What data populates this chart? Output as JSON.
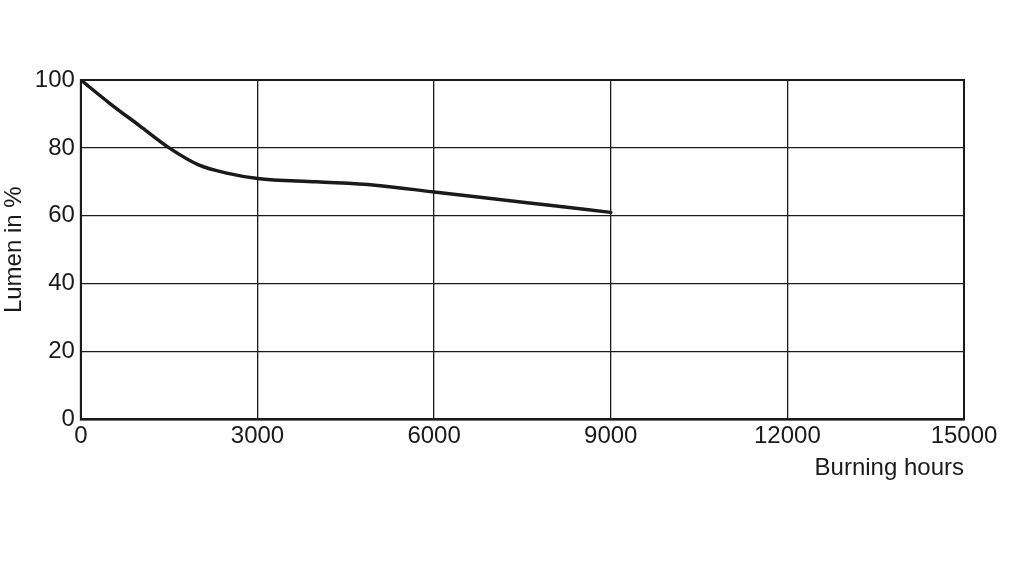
{
  "chart_data": {
    "type": "line",
    "xlabel": "Burning hours",
    "ylabel": "Lumen in %",
    "x": [
      0,
      500,
      1000,
      1500,
      2000,
      2500,
      3000,
      4000,
      5000,
      6000,
      7000,
      8000,
      9000
    ],
    "values": [
      100,
      93,
      86.5,
      80,
      75,
      72.5,
      71,
      70,
      69,
      67,
      65,
      63,
      61
    ],
    "color": "#1a1a1a",
    "xlim": [
      0,
      15000
    ],
    "xticks": [
      0,
      3000,
      6000,
      9000,
      12000,
      15000
    ],
    "ylim": [
      0,
      100
    ],
    "yticks": [
      0,
      20,
      40,
      60,
      80,
      100
    ],
    "grid": true,
    "legend": false,
    "marker": "none",
    "line_style": "solid"
  }
}
